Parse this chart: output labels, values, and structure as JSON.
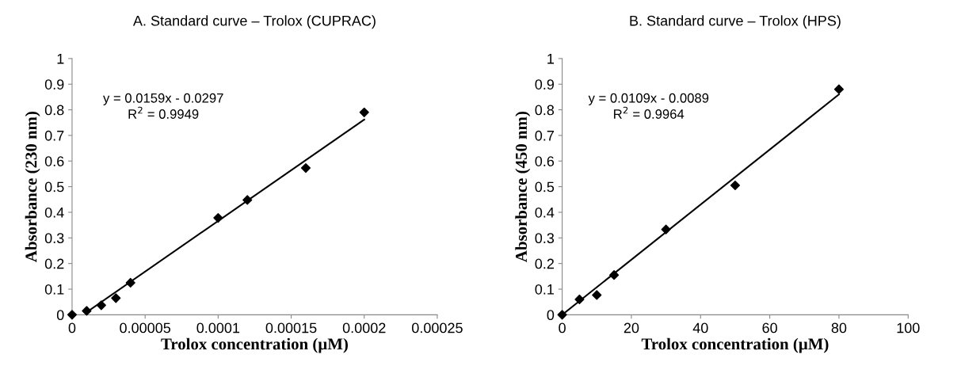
{
  "chart_data": [
    {
      "type": "scatter",
      "title": "A. Standard curve – Trolox (CUPRAC)",
      "xlabel": "Trolox concentration (µM)",
      "ylabel": "Absorbance (230 nm)",
      "series": [
        {
          "color": "#000000",
          "marker": "diamond",
          "x": [
            0,
            1e-05,
            2e-05,
            3e-05,
            4e-05,
            0.0001,
            0.00012,
            0.00016,
            0.0002
          ],
          "values": [
            0,
            0.015,
            0.037,
            0.065,
            0.125,
            0.378,
            0.448,
            0.573,
            0.79
          ]
        },
        {
          "type": "line",
          "color": "#000000",
          "marker": "none",
          "line_style": "solid",
          "x": [
            1e-05,
            0.0002
          ],
          "values": [
            0.01,
            0.762
          ]
        }
      ],
      "annotations": [
        "y = 0.0159x - 0.0297\nR$^{2}$ = 0.9949"
      ],
      "xlim": [
        0,
        0.00025
      ],
      "ylim": [
        0,
        1
      ],
      "xticks": [
        0,
        {
          "value": 5e-05,
          "label": "0.00005"
        },
        {
          "value": 0.0001,
          "label": "0.0001"
        },
        {
          "value": 0.00015,
          "label": "0.00015"
        },
        {
          "value": 0.0002,
          "label": "0.0002"
        },
        {
          "value": 0.00025,
          "label": "0.00025"
        }
      ],
      "yticks": [
        0,
        0.1,
        0.2,
        0.3,
        0.4,
        0.5,
        0.6,
        0.7,
        0.8,
        0.9,
        1
      ],
      "grid": false
    },
    {
      "type": "scatter",
      "title": "B. Standard curve – Trolox (HPS)",
      "xlabel": "Trolox concentration (µM)",
      "ylabel": "Absorbance (450 nm)",
      "series": [
        {
          "color": "#000000",
          "marker": "diamond",
          "x": [
            0,
            5,
            10,
            15,
            30,
            50,
            80
          ],
          "values": [
            0,
            0.06,
            0.077,
            0.155,
            0.333,
            0.505,
            0.88
          ]
        },
        {
          "type": "line",
          "color": "#000000",
          "marker": "none",
          "line_style": "solid",
          "x": [
            0,
            80
          ],
          "values": [
            0,
            0.86
          ]
        }
      ],
      "annotations": [
        "y = 0.0109x - 0.0089\nR$^{2}$ = 0.9964"
      ],
      "xlim": [
        0,
        100
      ],
      "ylim": [
        0,
        1
      ],
      "xticks": [
        0,
        20,
        40,
        60,
        80,
        100
      ],
      "yticks": [
        0,
        0.1,
        0.2,
        0.3,
        0.4,
        0.5,
        0.6,
        0.7,
        0.8,
        0.9,
        1
      ],
      "grid": false
    }
  ]
}
